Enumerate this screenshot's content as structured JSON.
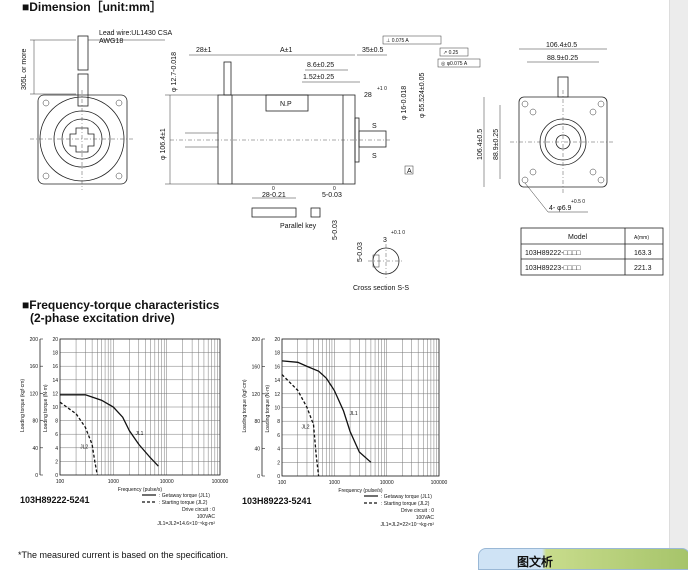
{
  "dimension": {
    "title": "■Dimension［unit:mm］",
    "lead_wire_1": "Lead wire:UL1430 CSA",
    "lead_wire_2": "AWG18",
    "lead_length": "305L or more",
    "dim_28": "28±1",
    "dim_A": "A±1",
    "dim_35": "35±0.5",
    "dim_8_6": "8.6±0.25",
    "dim_1_52": "1.52±0.25",
    "dim_28_key": "28",
    "dim_28_tol": "+1 0",
    "dim_phi12": "φ 12.7-0.018",
    "dim_phi106": "φ 106.4±1",
    "dim_phi16": "φ 16-0.018",
    "dim_phi55": "φ 55.524±0.05",
    "tol_perp": "⊥ 0.075 A",
    "tol_runout": "↗ 0.25",
    "tol_conc": "◎ φ0.075 A",
    "datum": "A",
    "np": "N.P",
    "s1": "S",
    "s2": "S",
    "key_len": "28-0.21",
    "key_w": "5-0.03",
    "key_h": "5-0.03",
    "zero": "0",
    "key_label": "Parallel key",
    "cs_w": "5-0.03",
    "cs_d": "3",
    "cs_tol": "+0.1 0",
    "cs_label": "Cross section S-S",
    "rear_w1": "106.4±0.5",
    "rear_w2": "88.9±0.25",
    "rear_h1": "106.4±0.5",
    "rear_h2": "88.9±0.25",
    "holes": "4- φ6.9",
    "holes_tol": "+0.5 0"
  },
  "model_table": {
    "headers": [
      "Model",
      "A(mm)"
    ],
    "rows": [
      [
        "103H89222-□□□□",
        "163.3"
      ],
      [
        "103H89223-□□□□",
        "221.3"
      ]
    ]
  },
  "section2": {
    "title_1": "■Frequency-torque characteristics",
    "title_2": "(2-phase excitation drive)"
  },
  "chart_data": [
    {
      "type": "line",
      "model": "103H89222-5241",
      "xlabel": "Frequency (pulse/s)",
      "ylabel": "Loading torque (N·m)",
      "ylabel2": "Loading torque (kgf·cm)",
      "x_scale": "log",
      "xlim": [
        100,
        100000
      ],
      "ylim": [
        0,
        20
      ],
      "ylim2": [
        0,
        200
      ],
      "x_ticks": [
        "100",
        "1000",
        "10000",
        "100000"
      ],
      "y_ticks": [
        "0",
        "2",
        "4",
        "6",
        "8",
        "10",
        "12",
        "14",
        "16",
        "18",
        "20"
      ],
      "y2_ticks": [
        "0",
        "40",
        "80",
        "120",
        "160",
        "200"
      ],
      "grid": true,
      "series": [
        {
          "name": "Getaway torque (JL1)",
          "label": "JL1",
          "style": "solid",
          "x": [
            100,
            300,
            600,
            1000,
            1500,
            2000,
            3000,
            5000,
            7000
          ],
          "y": [
            11.8,
            11.8,
            11,
            10,
            8.5,
            6.5,
            4.5,
            2.5,
            1.3
          ]
        },
        {
          "name": "Starting torque (JL2)",
          "label": "JL2",
          "style": "dashed",
          "x": [
            100,
            200,
            300,
            400,
            450,
            500
          ],
          "y": [
            10.7,
            9,
            7,
            4.5,
            2,
            0
          ]
        }
      ],
      "notes": [
        "Drive circuit : 0",
        "100VAC",
        "JL1=JL2=14.6×10⁻⁵kg·m²"
      ]
    },
    {
      "type": "line",
      "model": "103H89223-5241",
      "xlabel": "Frequency (pulse/s)",
      "ylabel": "Loading torque (N·m)",
      "ylabel2": "Loading torque (kgf·cm)",
      "x_scale": "log",
      "xlim": [
        100,
        100000
      ],
      "ylim": [
        0,
        20
      ],
      "ylim2": [
        0,
        200
      ],
      "x_ticks": [
        "100",
        "1000",
        "10000",
        "100000"
      ],
      "y_ticks": [
        "0",
        "2",
        "4",
        "6",
        "8",
        "10",
        "12",
        "14",
        "16",
        "18",
        "20"
      ],
      "y2_ticks": [
        "0",
        "40",
        "80",
        "120",
        "160",
        "200"
      ],
      "grid": true,
      "series": [
        {
          "name": "Getaway torque (JL1)",
          "label": "JL1",
          "style": "solid",
          "x": [
            100,
            200,
            300,
            500,
            700,
            1000,
            1500,
            2000,
            3000,
            5000
          ],
          "y": [
            16.8,
            16.6,
            16,
            15.3,
            14.3,
            12.5,
            9.5,
            6.5,
            3.5,
            2
          ]
        },
        {
          "name": "Starting torque (JL2)",
          "label": "JL2",
          "style": "dashed",
          "x": [
            100,
            200,
            300,
            400,
            450,
            500
          ],
          "y": [
            14.8,
            12.5,
            10,
            7.5,
            3,
            0
          ]
        }
      ],
      "notes": [
        "Drive circuit : 0",
        "100VAC",
        "JL1=JL2=22×10⁻⁵kg·m²"
      ]
    }
  ],
  "footnote": "*The measured current is based on the specification.",
  "popup_text": "图文析"
}
